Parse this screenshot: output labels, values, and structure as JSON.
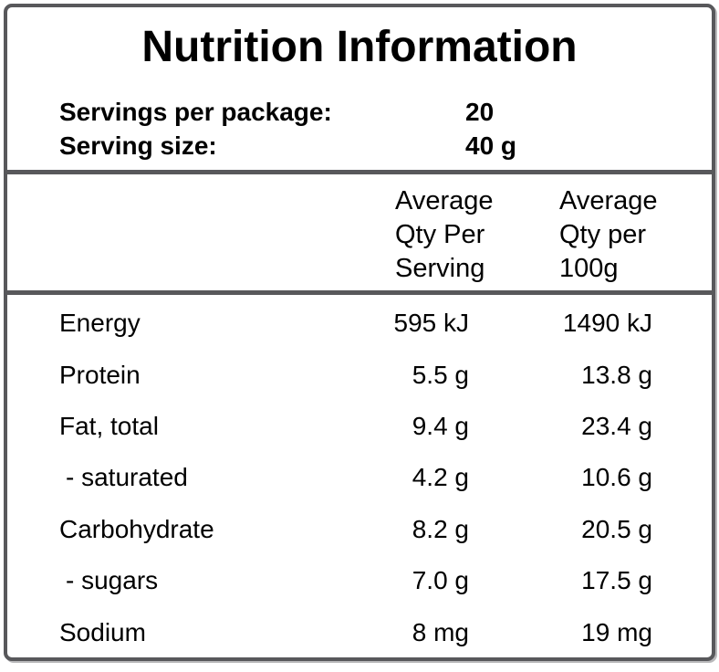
{
  "colors": {
    "border": "#58585b",
    "text": "#000000",
    "background": "#ffffff"
  },
  "label": {
    "title": "Nutrition Information",
    "servings": [
      {
        "label": "Servings per package:",
        "value": "20"
      },
      {
        "label": "Serving size:",
        "value": "40 g"
      }
    ],
    "columns": {
      "per_serving": [
        "Average",
        "Qty Per",
        "Serving"
      ],
      "per_100g": [
        "Average",
        "Qty per",
        "100g"
      ]
    },
    "rows": [
      {
        "nutrient": "Energy",
        "per_serving": "595 kJ",
        "per_100g": "1490 kJ"
      },
      {
        "nutrient": "Protein",
        "per_serving": "5.5 g",
        "per_100g": "13.8 g"
      },
      {
        "nutrient": "Fat, total",
        "per_serving": "9.4 g",
        "per_100g": "23.4 g"
      },
      {
        "nutrient": "- saturated",
        "per_serving": "4.2 g",
        "per_100g": "10.6 g"
      },
      {
        "nutrient": "Carbohydrate",
        "per_serving": "8.2 g",
        "per_100g": "20.5 g"
      },
      {
        "nutrient": "- sugars",
        "per_serving": "7.0 g",
        "per_100g": "17.5 g"
      },
      {
        "nutrient": "Sodium",
        "per_serving": "8 mg",
        "per_100g": "19 mg"
      }
    ]
  }
}
